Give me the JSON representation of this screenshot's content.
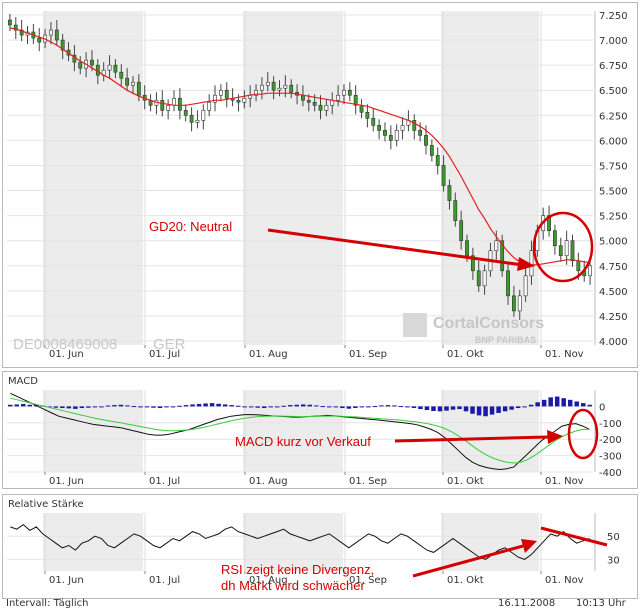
{
  "chart_data": [
    {
      "type": "candlestick",
      "panel": "price",
      "instrument_label": "DE0008469008",
      "exchange_label": "GER",
      "ylim": [
        4.0,
        7.25
      ],
      "y_ticks": [
        "7.250",
        "7.000",
        "6.750",
        "6.500",
        "6.250",
        "6.000",
        "5.750",
        "5.500",
        "5.250",
        "5.000",
        "4.750",
        "4.500",
        "4.250",
        "4.000"
      ],
      "x_ticks": [
        "01. Jun",
        "01. Jul",
        "01. Aug",
        "01. Sep",
        "01. Okt",
        "01. Nov"
      ],
      "grid": true,
      "series": [
        {
          "kind": "candles",
          "close": [
            7.15,
            7.1,
            7.05,
            7.08,
            7.02,
            6.98,
            7.05,
            7.1,
            7.0,
            6.9,
            6.85,
            6.78,
            6.72,
            6.8,
            6.75,
            6.65,
            6.7,
            6.75,
            6.68,
            6.62,
            6.55,
            6.58,
            6.45,
            6.4,
            6.35,
            6.4,
            6.3,
            6.35,
            6.42,
            6.3,
            6.25,
            6.18,
            6.2,
            6.3,
            6.38,
            6.45,
            6.5,
            6.42,
            6.4,
            6.38,
            6.42,
            6.45,
            6.5,
            6.55,
            6.58,
            6.5,
            6.52,
            6.55,
            6.48,
            6.45,
            6.4,
            6.38,
            6.35,
            6.3,
            6.35,
            6.4,
            6.45,
            6.5,
            6.45,
            6.35,
            6.28,
            6.22,
            6.15,
            6.1,
            6.05,
            6.0,
            6.1,
            6.15,
            6.2,
            6.1,
            6.05,
            5.95,
            5.85,
            5.75,
            5.55,
            5.4,
            5.2,
            5.0,
            4.85,
            4.7,
            4.55,
            4.7,
            4.9,
            5.0,
            4.7,
            4.45,
            4.3,
            4.45,
            4.65,
            4.9,
            5.1,
            5.25,
            5.1,
            4.95,
            4.85,
            5.0,
            4.8,
            4.7,
            4.65,
            4.75
          ]
        },
        {
          "kind": "line",
          "name": "GD20",
          "close": [
            7.12,
            7.11,
            7.09,
            7.07,
            7.05,
            7.03,
            7.01,
            6.98,
            6.95,
            6.91,
            6.87,
            6.83,
            6.79,
            6.76,
            6.72,
            6.69,
            6.65,
            6.62,
            6.58,
            6.54,
            6.5,
            6.47,
            6.44,
            6.42,
            6.4,
            6.38,
            6.37,
            6.36,
            6.35,
            6.35,
            6.35,
            6.36,
            6.37,
            6.38,
            6.39,
            6.4,
            6.4,
            6.41,
            6.42,
            6.43,
            6.44,
            6.45,
            6.46,
            6.46,
            6.47,
            6.47,
            6.47,
            6.47,
            6.47,
            6.46,
            6.45,
            6.44,
            6.43,
            6.42,
            6.41,
            6.4,
            6.39,
            6.38,
            6.37,
            6.36,
            6.35,
            6.34,
            6.32,
            6.3,
            6.28,
            6.26,
            6.24,
            6.22,
            6.2,
            6.17,
            6.14,
            6.1,
            6.05,
            5.99,
            5.92,
            5.84,
            5.74,
            5.64,
            5.53,
            5.42,
            5.31,
            5.22,
            5.12,
            5.04,
            4.96,
            4.89,
            4.83,
            4.79,
            4.77,
            4.76,
            4.76,
            4.77,
            4.78,
            4.79,
            4.8,
            4.81,
            4.81,
            4.8,
            4.79,
            4.78
          ]
        }
      ],
      "annotations": [
        "GD20: Neutral"
      ]
    },
    {
      "type": "bar+line",
      "panel": "MACD",
      "title": "MACD",
      "ylim": [
        -400,
        100
      ],
      "y_ticks": [
        "0",
        "-100",
        "-200",
        "-300",
        "-400"
      ],
      "x_ticks": [
        "01. Jun",
        "01. Jul",
        "01. Aug",
        "01. Sep",
        "01. Okt",
        "01. Nov"
      ],
      "grid": true,
      "series": [
        {
          "kind": "bars",
          "values": [
            10,
            12,
            15,
            10,
            8,
            5,
            -5,
            -8,
            -10,
            -12,
            -15,
            -10,
            -8,
            -5,
            0,
            5,
            8,
            10,
            6,
            2,
            -2,
            -5,
            -8,
            -10,
            -6,
            -2,
            4,
            8,
            12,
            15,
            18,
            20,
            16,
            12,
            8,
            4,
            0,
            -4,
            -8,
            -10,
            -6,
            -2,
            4,
            8,
            10,
            12,
            10,
            6,
            2,
            -2,
            -6,
            -10,
            -14,
            -10,
            -6,
            -2,
            2,
            6,
            8,
            6,
            2,
            -4,
            -10,
            -16,
            -22,
            -28,
            -30,
            -26,
            -20,
            -16,
            -30,
            -45,
            -55,
            -60,
            -50,
            -40,
            -30,
            -20,
            -10,
            0,
            10,
            25,
            40,
            55,
            60,
            50,
            40,
            30,
            20,
            10
          ]
        },
        {
          "kind": "line",
          "name": "MACD",
          "values": [
            80,
            60,
            40,
            20,
            0,
            -20,
            -40,
            -60,
            -70,
            -80,
            -90,
            -100,
            -110,
            -115,
            -120,
            -125,
            -130,
            -140,
            -150,
            -160,
            -170,
            -175,
            -175,
            -170,
            -160,
            -150,
            -140,
            -125,
            -110,
            -95,
            -80,
            -70,
            -60,
            -55,
            -50,
            -50,
            -52,
            -55,
            -58,
            -60,
            -62,
            -65,
            -65,
            -62,
            -60,
            -58,
            -55,
            -58,
            -62,
            -66,
            -70,
            -74,
            -78,
            -82,
            -86,
            -90,
            -95,
            -100,
            -105,
            -112,
            -125,
            -140,
            -160,
            -190,
            -230,
            -270,
            -310,
            -340,
            -360,
            -372,
            -380,
            -385,
            -380,
            -370,
            -330,
            -290,
            -250,
            -210,
            -180,
            -150,
            -120,
            -110,
            -105,
            -120,
            -140
          ]
        },
        {
          "kind": "line",
          "name": "Signal",
          "values": [
            50,
            40,
            30,
            20,
            10,
            0,
            -10,
            -20,
            -30,
            -40,
            -50,
            -60,
            -70,
            -78,
            -86,
            -94,
            -100,
            -108,
            -116,
            -124,
            -132,
            -140,
            -145,
            -148,
            -148,
            -146,
            -142,
            -136,
            -128,
            -118,
            -108,
            -98,
            -88,
            -80,
            -72,
            -66,
            -62,
            -60,
            -59,
            -59,
            -60,
            -61,
            -62,
            -62,
            -61,
            -60,
            -59,
            -59,
            -60,
            -62,
            -64,
            -67,
            -70,
            -73,
            -76,
            -79,
            -82,
            -86,
            -90,
            -95,
            -102,
            -110,
            -120,
            -135,
            -155,
            -180,
            -210,
            -240,
            -270,
            -295,
            -315,
            -330,
            -340,
            -345,
            -340,
            -325,
            -300,
            -270,
            -240,
            -210,
            -185,
            -165,
            -150,
            -140,
            -140
          ]
        }
      ],
      "annotations": [
        "MACD kurz vor Verkauf"
      ]
    },
    {
      "type": "line",
      "panel": "RSI",
      "title": "Relative Stärke",
      "ylim": [
        20,
        70
      ],
      "y_ticks": [
        "50",
        "30"
      ],
      "x_ticks": [
        "01. Jun",
        "01. Jul",
        "01. Aug",
        "01. Sep",
        "01. Okt",
        "01. Nov"
      ],
      "grid": true,
      "series": [
        {
          "kind": "line",
          "name": "RSI",
          "values": [
            58,
            56,
            60,
            55,
            58,
            52,
            48,
            44,
            40,
            42,
            38,
            44,
            46,
            50,
            48,
            42,
            40,
            44,
            48,
            52,
            50,
            46,
            42,
            40,
            44,
            48,
            46,
            50,
            54,
            52,
            48,
            50,
            52,
            56,
            58,
            54,
            52,
            50,
            48,
            50,
            52,
            54,
            56,
            52,
            50,
            48,
            46,
            48,
            50,
            52,
            48,
            44,
            40,
            44,
            48,
            52,
            50,
            46,
            44,
            48,
            52,
            50,
            46,
            42,
            38,
            36,
            40,
            44,
            48,
            44,
            40,
            36,
            32,
            30,
            34,
            38,
            40,
            36,
            32,
            30,
            34,
            40,
            46,
            52,
            50,
            54,
            48,
            44,
            46,
            48
          ]
        }
      ],
      "annotations": [
        "RSI zeigt keine Divergenz,",
        "dh Markt wird schwächer"
      ]
    }
  ],
  "footer": {
    "interval": "Intervall: Täglich",
    "date": "16.11.2008",
    "time": "10:13 Uhr"
  },
  "watermark": {
    "brand": "CortalConsors",
    "sub": "BNP PARIBAS"
  },
  "colors": {
    "candle_up": "#3a9a2a",
    "candle_down": "#3a9a2a",
    "gd20": "#e02020",
    "macd_bar": "#1a1aa8",
    "macd_line": "#111111",
    "signal_line": "#3bcb3b",
    "rsi_line": "#111111",
    "annotation": "#d40000",
    "shade": "#ececec"
  }
}
